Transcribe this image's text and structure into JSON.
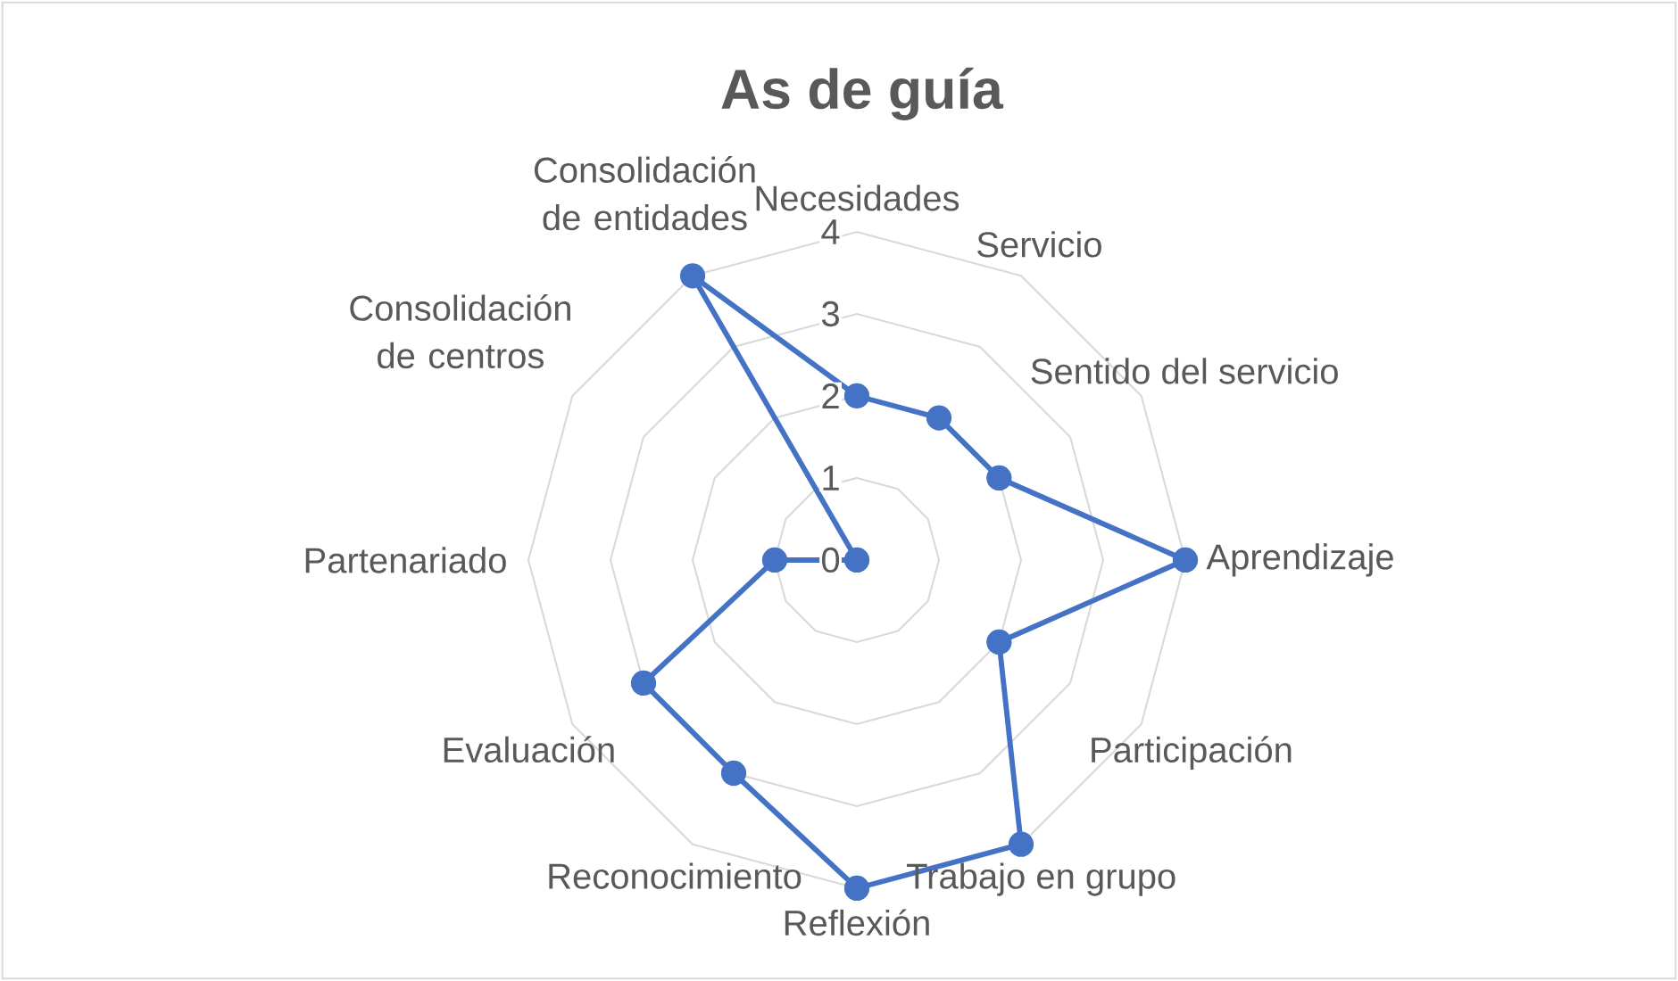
{
  "chart_data": {
    "type": "radar",
    "title": "As de guía",
    "categories": [
      "Necesidades",
      "Servicio",
      "Sentido del servicio",
      "Aprendizaje",
      "Participación",
      "Trabajo en grupo",
      "Reflexión",
      "Reconocimiento",
      "Evaluación",
      "Partenariado",
      "Consolidación de centros",
      "Consolidación de entidades"
    ],
    "series": [
      {
        "color": "#4472c4",
        "values": [
          2,
          2,
          2,
          4,
          2,
          4,
          4,
          3,
          3,
          1,
          0,
          4
        ]
      }
    ],
    "ylim": [
      0,
      4
    ],
    "yticks": [
      0,
      1,
      2,
      3,
      4
    ],
    "grid": true,
    "marker": "circle"
  }
}
